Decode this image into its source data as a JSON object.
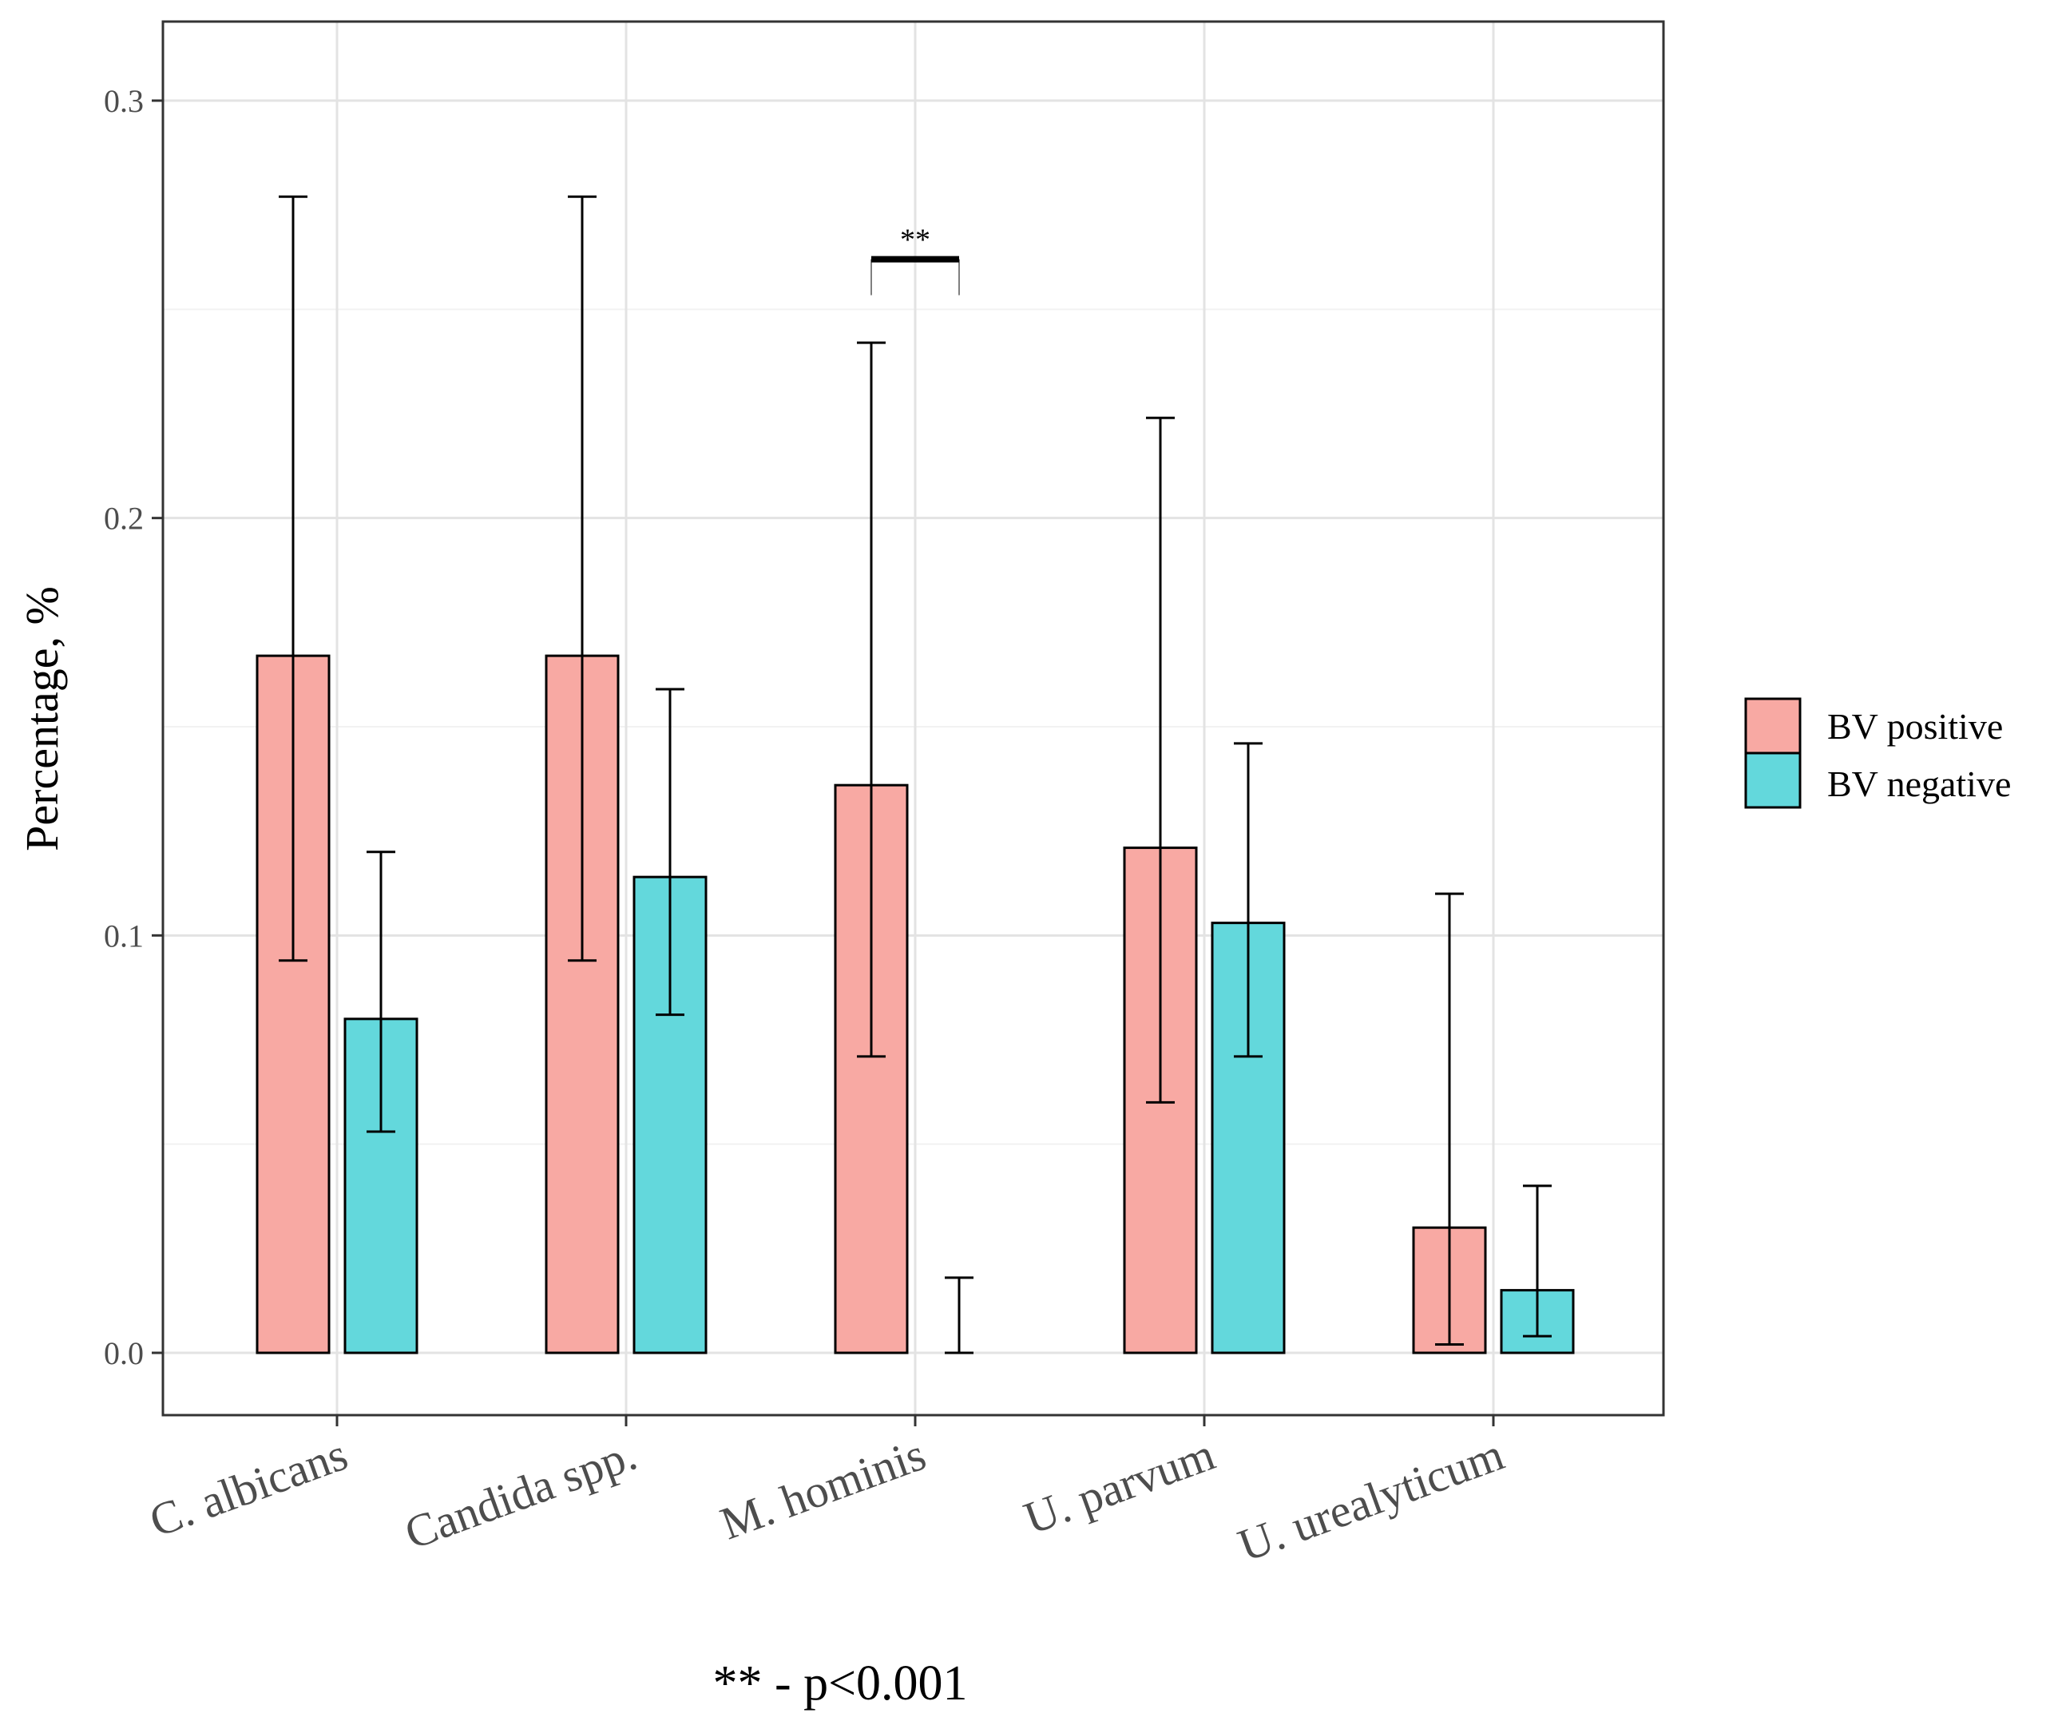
{
  "chart_data": {
    "type": "bar",
    "title": "",
    "xlabel": "",
    "ylabel": "Percentage, %",
    "ylim": [
      -0.015,
      0.318
    ],
    "yticks": [
      0.0,
      0.1,
      0.2,
      0.3
    ],
    "ytick_labels": [
      "0.0",
      "0.1",
      "0.2",
      "0.3"
    ],
    "grid": true,
    "legend_position": "right",
    "categories": [
      "C. albicans",
      "Candida spp.",
      "M. hominis",
      "U. parvum",
      "U. urealyticum"
    ],
    "series": [
      {
        "name": "BV positive",
        "color": "#F8A9A3",
        "values": [
          0.167,
          0.167,
          0.136,
          0.121,
          0.03
        ],
        "error_low": [
          0.094,
          0.094,
          0.071,
          0.06,
          0.002
        ],
        "error_high": [
          0.277,
          0.277,
          0.242,
          0.224,
          0.11
        ]
      },
      {
        "name": "BV negative",
        "color": "#63D8DC",
        "values": [
          0.08,
          0.114,
          0.0,
          0.103,
          0.015
        ],
        "error_low": [
          0.053,
          0.081,
          0.0,
          0.071,
          0.004
        ],
        "error_high": [
          0.12,
          0.159,
          0.018,
          0.146,
          0.04
        ]
      }
    ],
    "annotations": [
      {
        "category": "M. hominis",
        "text": "**",
        "y": 0.262
      }
    ],
    "footnote": "** - p<0.001"
  }
}
